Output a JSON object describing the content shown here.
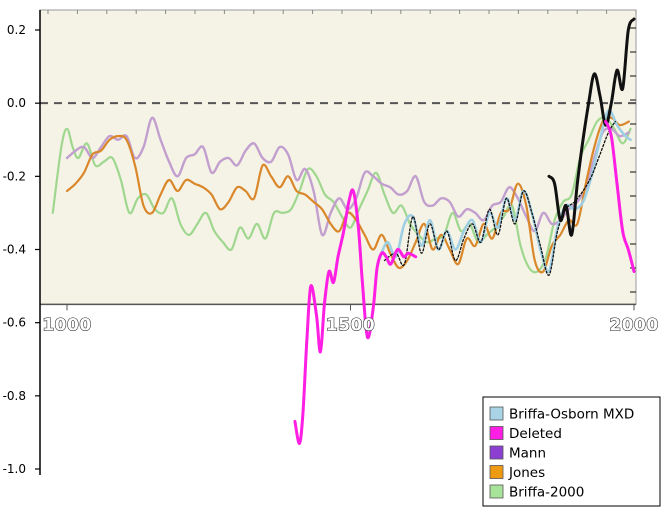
{
  "chart_data": {
    "type": "line",
    "title": "",
    "xlabel": "",
    "ylabel": "",
    "xlim": [
      975,
      2000
    ],
    "ylim": [
      -1.0,
      0.25
    ],
    "y_ticks": [
      0.2,
      0.0,
      -0.2,
      -0.4,
      -0.6,
      -0.8,
      -1.0
    ],
    "y_tick_labels": [
      "0.2",
      "0.0",
      "-0.2",
      "-0.4",
      "-0.6",
      "-0.8",
      "-1.0"
    ],
    "x_ticks": [
      1000,
      1500,
      2000
    ],
    "x_tick_labels": [
      "1000",
      "1500",
      "2000"
    ],
    "zero_reference_line": "dashed",
    "inner_panel_background": "#f5f3e6",
    "inner_panel_ylim_bottom": -0.55,
    "legend_position": "bottom-right",
    "series": [
      {
        "name": "Briffa-2000",
        "color": "#9fd78f",
        "x": [
          975,
          990,
          1000,
          1010,
          1020,
          1035,
          1050,
          1065,
          1080,
          1095,
          1110,
          1125,
          1140,
          1155,
          1170,
          1185,
          1200,
          1215,
          1230,
          1245,
          1260,
          1275,
          1290,
          1305,
          1320,
          1335,
          1350,
          1365,
          1380,
          1395,
          1410,
          1425,
          1440,
          1455,
          1470,
          1485,
          1500,
          1515,
          1530,
          1545,
          1560,
          1575,
          1590,
          1605,
          1620,
          1635,
          1650,
          1665,
          1680,
          1695,
          1710,
          1725,
          1740,
          1755,
          1770,
          1785,
          1800,
          1815,
          1830,
          1845,
          1860,
          1875,
          1890,
          1905,
          1920,
          1935,
          1950,
          1965,
          1980,
          1994
        ],
        "values": [
          -0.3,
          -0.12,
          -0.07,
          -0.12,
          -0.15,
          -0.11,
          -0.17,
          -0.16,
          -0.15,
          -0.21,
          -0.3,
          -0.26,
          -0.25,
          -0.29,
          -0.3,
          -0.26,
          -0.33,
          -0.36,
          -0.33,
          -0.3,
          -0.35,
          -0.38,
          -0.4,
          -0.34,
          -0.37,
          -0.33,
          -0.37,
          -0.3,
          -0.3,
          -0.29,
          -0.24,
          -0.18,
          -0.2,
          -0.25,
          -0.27,
          -0.31,
          -0.34,
          -0.29,
          -0.24,
          -0.19,
          -0.25,
          -0.3,
          -0.28,
          -0.33,
          -0.36,
          -0.38,
          -0.37,
          -0.36,
          -0.3,
          -0.35,
          -0.33,
          -0.38,
          -0.36,
          -0.34,
          -0.31,
          -0.28,
          -0.39,
          -0.45,
          -0.46,
          -0.42,
          -0.32,
          -0.27,
          -0.25,
          -0.15,
          -0.1,
          -0.05,
          -0.04,
          -0.07,
          -0.11,
          -0.07
        ]
      },
      {
        "name": "Jones",
        "color": "#d9872a",
        "x": [
          1000,
          1015,
          1030,
          1045,
          1060,
          1075,
          1090,
          1105,
          1120,
          1135,
          1150,
          1165,
          1180,
          1195,
          1210,
          1225,
          1240,
          1255,
          1270,
          1285,
          1300,
          1315,
          1330,
          1345,
          1360,
          1375,
          1390,
          1405,
          1420,
          1435,
          1450,
          1465,
          1480,
          1495,
          1510,
          1525,
          1540,
          1555,
          1570,
          1585,
          1600,
          1615,
          1630,
          1645,
          1660,
          1675,
          1690,
          1705,
          1720,
          1735,
          1750,
          1765,
          1780,
          1795,
          1810,
          1825,
          1840,
          1855,
          1870,
          1885,
          1900,
          1915,
          1930,
          1945,
          1960,
          1975,
          1991
        ],
        "values": [
          -0.24,
          -0.22,
          -0.19,
          -0.14,
          -0.13,
          -0.1,
          -0.09,
          -0.1,
          -0.17,
          -0.28,
          -0.3,
          -0.25,
          -0.21,
          -0.24,
          -0.21,
          -0.22,
          -0.23,
          -0.25,
          -0.29,
          -0.27,
          -0.23,
          -0.24,
          -0.26,
          -0.17,
          -0.2,
          -0.23,
          -0.2,
          -0.24,
          -0.25,
          -0.27,
          -0.29,
          -0.33,
          -0.35,
          -0.3,
          -0.32,
          -0.36,
          -0.4,
          -0.36,
          -0.41,
          -0.45,
          -0.43,
          -0.38,
          -0.33,
          -0.4,
          -0.36,
          -0.4,
          -0.44,
          -0.37,
          -0.39,
          -0.33,
          -0.37,
          -0.3,
          -0.29,
          -0.22,
          -0.28,
          -0.43,
          -0.46,
          -0.39,
          -0.36,
          -0.32,
          -0.33,
          -0.22,
          -0.12,
          -0.05,
          -0.04,
          -0.06,
          -0.05
        ]
      },
      {
        "name": "Mann",
        "color": "#c29fce",
        "x": [
          1000,
          1015,
          1030,
          1045,
          1060,
          1075,
          1090,
          1105,
          1120,
          1135,
          1150,
          1165,
          1180,
          1195,
          1210,
          1225,
          1240,
          1255,
          1270,
          1285,
          1300,
          1315,
          1330,
          1345,
          1360,
          1375,
          1390,
          1405,
          1420,
          1435,
          1450,
          1465,
          1480,
          1495,
          1510,
          1525,
          1540,
          1555,
          1570,
          1585,
          1600,
          1615,
          1630,
          1645,
          1660,
          1675,
          1690,
          1705,
          1720,
          1735,
          1750,
          1765,
          1780,
          1795,
          1810,
          1825,
          1840,
          1855,
          1870,
          1885,
          1900,
          1915,
          1930,
          1945,
          1960,
          1975,
          1991
        ],
        "values": [
          -0.15,
          -0.13,
          -0.12,
          -0.15,
          -0.12,
          -0.09,
          -0.1,
          -0.09,
          -0.15,
          -0.12,
          -0.04,
          -0.1,
          -0.16,
          -0.2,
          -0.15,
          -0.14,
          -0.12,
          -0.19,
          -0.16,
          -0.15,
          -0.17,
          -0.13,
          -0.11,
          -0.15,
          -0.16,
          -0.12,
          -0.14,
          -0.21,
          -0.18,
          -0.24,
          -0.36,
          -0.3,
          -0.26,
          -0.29,
          -0.26,
          -0.19,
          -0.2,
          -0.22,
          -0.23,
          -0.25,
          -0.24,
          -0.2,
          -0.27,
          -0.28,
          -0.26,
          -0.27,
          -0.31,
          -0.29,
          -0.3,
          -0.32,
          -0.28,
          -0.27,
          -0.23,
          -0.26,
          -0.31,
          -0.35,
          -0.3,
          -0.33,
          -0.32,
          -0.29,
          -0.27,
          -0.23,
          -0.15,
          -0.08,
          -0.07,
          -0.09,
          -0.08
        ]
      },
      {
        "name": "Briffa-Osborn MXD",
        "color": "#9fcfe3",
        "x": [
          1550,
          1565,
          1580,
          1595,
          1610,
          1625,
          1640,
          1655,
          1670,
          1685,
          1700,
          1715,
          1730,
          1745,
          1760,
          1775,
          1790,
          1805,
          1820,
          1835,
          1850,
          1865,
          1880,
          1895,
          1910,
          1925,
          1940,
          1955,
          1970,
          1985,
          1994
        ],
        "values": [
          -0.43,
          -0.38,
          -0.42,
          -0.33,
          -0.31,
          -0.39,
          -0.32,
          -0.4,
          -0.35,
          -0.4,
          -0.35,
          -0.32,
          -0.38,
          -0.3,
          -0.34,
          -0.26,
          -0.32,
          -0.24,
          -0.3,
          -0.4,
          -0.46,
          -0.34,
          -0.28,
          -0.29,
          -0.27,
          -0.2,
          -0.1,
          -0.02,
          -0.06,
          -0.09,
          -0.1
        ]
      },
      {
        "name": "Deleted",
        "color": "#ff1ee3",
        "x": [
          1402,
          1410,
          1416,
          1423,
          1430,
          1440,
          1447,
          1454,
          1462,
          1470,
          1478,
          1488,
          1497,
          1505,
          1514,
          1521,
          1530,
          1540,
          1547,
          1555,
          1563,
          1571,
          1583,
          1594,
          1602,
          1615
        ],
        "values": [
          -0.87,
          -0.93,
          -0.85,
          -0.65,
          -0.5,
          -0.58,
          -0.68,
          -0.55,
          -0.46,
          -0.49,
          -0.42,
          -0.35,
          -0.27,
          -0.24,
          -0.34,
          -0.49,
          -0.64,
          -0.56,
          -0.45,
          -0.41,
          -0.42,
          -0.44,
          -0.4,
          -0.42,
          -0.41,
          -0.42
        ]
      },
      {
        "name": "",
        "role": "post-1960 segment of the deleted series",
        "color": "#ff1ee3",
        "x": [
          1950,
          1960,
          1970,
          1980,
          1990,
          2000
        ],
        "values": [
          -0.05,
          -0.09,
          -0.22,
          -0.35,
          -0.4,
          -0.46
        ]
      },
      {
        "name": "",
        "role": "dotted black overlay",
        "color": "#111111",
        "x": [
          1560,
          1580,
          1595,
          1610,
          1625,
          1640,
          1655,
          1670,
          1685,
          1700,
          1715,
          1730,
          1745,
          1760,
          1775,
          1790,
          1805,
          1820,
          1835,
          1850,
          1865,
          1880,
          1895,
          1910,
          1925,
          1940,
          1955,
          1967
        ],
        "values": [
          -0.43,
          -0.41,
          -0.44,
          -0.31,
          -0.41,
          -0.33,
          -0.4,
          -0.35,
          -0.43,
          -0.37,
          -0.33,
          -0.38,
          -0.29,
          -0.36,
          -0.26,
          -0.33,
          -0.24,
          -0.3,
          -0.39,
          -0.47,
          -0.35,
          -0.29,
          -0.27,
          -0.24,
          -0.2,
          -0.14,
          -0.08,
          -0.05
        ]
      },
      {
        "name": "",
        "role": "instrumental record (black)",
        "color": "#111111",
        "x": [
          1850,
          1860,
          1870,
          1880,
          1890,
          1900,
          1910,
          1920,
          1930,
          1940,
          1950,
          1960,
          1970,
          1980,
          1990,
          2000
        ],
        "values": [
          -0.2,
          -0.22,
          -0.32,
          -0.28,
          -0.36,
          -0.22,
          -0.1,
          0.0,
          0.08,
          0.02,
          -0.06,
          0.0,
          0.09,
          0.04,
          0.2,
          0.23
        ]
      }
    ]
  }
}
